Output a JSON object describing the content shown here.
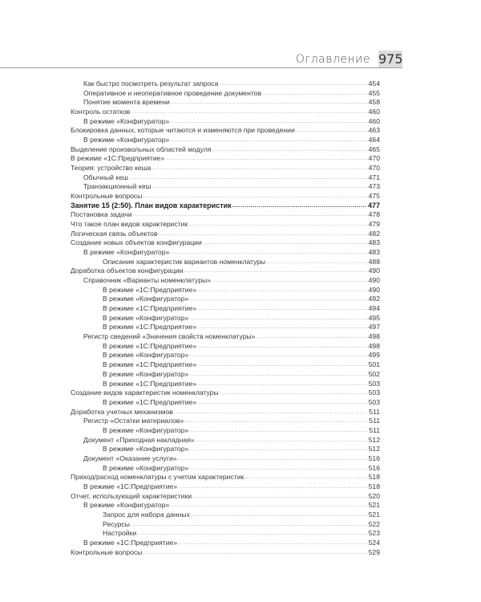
{
  "header": {
    "section_title": "Оглавление",
    "page_number": "975"
  },
  "toc": [
    {
      "level": 1,
      "title": "Как быстро посмотреть результат запроса",
      "page": "454"
    },
    {
      "level": 1,
      "title": "Оперативное и неоперативное проведение документов",
      "page": "455"
    },
    {
      "level": 1,
      "title": "Понятие момента времени",
      "page": "458"
    },
    {
      "level": 0,
      "title": "Контроль остатков",
      "page": "460"
    },
    {
      "level": 1,
      "title": "В режиме «Конфигуратор»",
      "page": "460"
    },
    {
      "level": 0,
      "title": "Блокировка данных, которые читаются и изменяются при проведении",
      "page": "463"
    },
    {
      "level": 1,
      "title": "В режиме «Конфигуратор»",
      "page": "464"
    },
    {
      "level": 0,
      "title": "Выделение произвольных областей модуля",
      "page": "465"
    },
    {
      "level": 0,
      "title": "В режиме «1С:Предприятие»",
      "page": "470"
    },
    {
      "level": 0,
      "title": "Теория: устройство кеша",
      "page": "470"
    },
    {
      "level": 1,
      "title": "Обычный кеш",
      "page": "471"
    },
    {
      "level": 1,
      "title": "Транзакционный кеш",
      "page": "473"
    },
    {
      "level": 0,
      "title": "Контрольные вопросы",
      "page": "475"
    },
    {
      "level": 0,
      "bold": true,
      "title": "Занятие 15 (2:50). План видов характеристик",
      "page": "477"
    },
    {
      "level": 0,
      "title": "Постановка задачи",
      "page": "478"
    },
    {
      "level": 0,
      "title": "Что такое план видов характеристик",
      "page": "479"
    },
    {
      "level": 0,
      "title": "Логическая связь объектов",
      "page": "482"
    },
    {
      "level": 0,
      "title": "Создание новых объектов конфигурации",
      "page": "483"
    },
    {
      "level": 1,
      "title": "В режиме «Конфигуратор»",
      "page": "483"
    },
    {
      "level": 2,
      "title": "Описание характеристик вариантов номенклатуры",
      "page": "488"
    },
    {
      "level": 0,
      "title": "Доработка объектов конфигурации",
      "page": "490"
    },
    {
      "level": 1,
      "title": "Справочник «Варианты номенклатуры»",
      "page": "490"
    },
    {
      "level": 2,
      "title": "В режиме «1С:Предприятие»",
      "page": "490"
    },
    {
      "level": 2,
      "title": "В режиме «Конфигуратор»",
      "page": "492"
    },
    {
      "level": 2,
      "title": "В режиме «1С:Предприятие»",
      "page": "494"
    },
    {
      "level": 2,
      "title": "В режиме «Конфигуратор»",
      "page": "495"
    },
    {
      "level": 2,
      "title": "В режиме «1С:Предприятие»",
      "page": "497"
    },
    {
      "level": 1,
      "title": "Регистр сведений «Значения свойств номенклатуры»",
      "page": "498"
    },
    {
      "level": 2,
      "title": "В режиме «1С:Предприятие»",
      "page": "498"
    },
    {
      "level": 2,
      "title": "В режиме «Конфигуратор»",
      "page": "499"
    },
    {
      "level": 2,
      "title": "В режиме «1С:Предприятие»",
      "page": "501"
    },
    {
      "level": 2,
      "title": "В режиме «Конфигуратор»",
      "page": "502"
    },
    {
      "level": 2,
      "title": "В режиме «1С:Предприятие»",
      "page": "503"
    },
    {
      "level": 0,
      "title": "Создание видов характеристик номенклатуры",
      "page": "503"
    },
    {
      "level": 2,
      "title": "В режиме «1С:Предприятие»",
      "page": "503"
    },
    {
      "level": 0,
      "title": "Доработка учетных механизмов",
      "page": "511"
    },
    {
      "level": 1,
      "title": "Регистр «Остатки материалов»",
      "page": "511"
    },
    {
      "level": 2,
      "title": "В режиме «Конфигуратор»",
      "page": "511"
    },
    {
      "level": 1,
      "title": "Документ «Приходная накладная»",
      "page": "512"
    },
    {
      "level": 2,
      "title": "В режиме «Конфигуратор»",
      "page": "512"
    },
    {
      "level": 1,
      "title": "Документ «Оказание услуги»",
      "page": "516"
    },
    {
      "level": 2,
      "title": "В режиме «Конфигуратор»",
      "page": "516"
    },
    {
      "level": 0,
      "title": "Приход/расход номенклатуры с учетом характеристик",
      "page": "518"
    },
    {
      "level": 1,
      "title": "В режиме «1С:Предприятие»",
      "page": "518"
    },
    {
      "level": 0,
      "title": "Отчет, использующий характеристики",
      "page": "520"
    },
    {
      "level": 1,
      "title": "В режиме «Конфигуратор»",
      "page": "521"
    },
    {
      "level": 2,
      "title": "Запрос для набора данных",
      "page": "521"
    },
    {
      "level": 2,
      "title": "Ресурсы",
      "page": "522"
    },
    {
      "level": 2,
      "title": "Настройки",
      "page": "523"
    },
    {
      "level": 1,
      "title": "В режиме «1С:Предприятие»",
      "page": "524"
    },
    {
      "level": 0,
      "title": "Контрольные вопросы",
      "page": "529"
    }
  ]
}
